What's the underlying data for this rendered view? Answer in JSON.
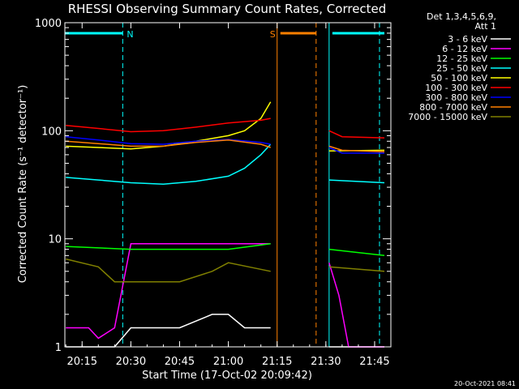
{
  "chart_data": {
    "type": "line",
    "title": "RHESSI Observing Summary Count Rates, Corrected",
    "xlabel": "Start Time (17-Oct-02 20:09:42)",
    "ylabel": "Corrected Count Rate (s⁻¹ detector⁻¹)",
    "y_scale": "log",
    "ylim": [
      1,
      1000
    ],
    "xlim": [
      "20:09:42",
      "21:50:00"
    ],
    "x_ticks": [
      "20:15",
      "20:30",
      "20:45",
      "21:00",
      "21:15",
      "21:30",
      "21:45"
    ],
    "y_ticks": [
      "1",
      "10",
      "100",
      "1000"
    ],
    "legend_title": [
      "Det 1,3,4,5,6,9,",
      "Att 1"
    ],
    "legend_position": "right",
    "footer": "20-Oct-2021 08:41",
    "flags": [
      {
        "label": "N",
        "color": "#00ffff",
        "spans": [
          [
            "20:09:42",
            "20:27:30"
          ],
          [
            "21:32:00",
            "21:48:00"
          ]
        ]
      },
      {
        "label": "S",
        "color": "#ff8000",
        "spans": [
          [
            "21:16:00",
            "21:27:00"
          ]
        ]
      }
    ],
    "vertical_lines": [
      {
        "time": "20:27:30",
        "color": "#00ffff",
        "style": "dashed"
      },
      {
        "time": "21:31:00",
        "color": "#00ffff",
        "style": "solid"
      },
      {
        "time": "21:46:30",
        "color": "#00ffff",
        "style": "dashed"
      },
      {
        "time": "21:15:00",
        "color": "#ff8000",
        "style": "solid"
      },
      {
        "time": "21:27:00",
        "color": "#ff8000",
        "style": "dashed"
      }
    ],
    "data_gap": [
      "21:14:00",
      "21:31:00"
    ],
    "series": [
      {
        "name": "3 - 6 keV",
        "color": "#ffffff",
        "points": [
          [
            "20:10",
            1
          ],
          [
            "20:25",
            1
          ],
          [
            "20:30",
            1.5
          ],
          [
            "20:45",
            1.5
          ],
          [
            "20:55",
            2
          ],
          [
            "21:00",
            2
          ],
          [
            "21:05",
            1.5
          ],
          [
            "21:13",
            1.5
          ],
          [
            "21:31",
            1
          ],
          [
            "21:48",
            1
          ]
        ]
      },
      {
        "name": "6 - 12 keV",
        "color": "#ff00ff",
        "points": [
          [
            "20:10",
            1.5
          ],
          [
            "20:17",
            1.5
          ],
          [
            "20:20",
            1.2
          ],
          [
            "20:25",
            1.5
          ],
          [
            "20:30",
            9
          ],
          [
            "21:13",
            9
          ],
          [
            "21:31",
            6
          ],
          [
            "21:34",
            3
          ],
          [
            "21:37",
            1
          ],
          [
            "21:48",
            1
          ]
        ]
      },
      {
        "name": "12 - 25 keV",
        "color": "#00ff00",
        "points": [
          [
            "20:10",
            8.5
          ],
          [
            "20:30",
            8
          ],
          [
            "20:45",
            8
          ],
          [
            "21:00",
            8
          ],
          [
            "21:13",
            9
          ],
          [
            "21:31",
            8
          ],
          [
            "21:48",
            7
          ]
        ]
      },
      {
        "name": "25 - 50 keV",
        "color": "#00ffff",
        "points": [
          [
            "20:10",
            37
          ],
          [
            "20:20",
            35
          ],
          [
            "20:30",
            33
          ],
          [
            "20:40",
            32
          ],
          [
            "20:50",
            34
          ],
          [
            "21:00",
            38
          ],
          [
            "21:05",
            45
          ],
          [
            "21:10",
            60
          ],
          [
            "21:13",
            75
          ],
          [
            "21:31",
            35
          ],
          [
            "21:48",
            33
          ]
        ]
      },
      {
        "name": "50 - 100 keV",
        "color": "#ffff00",
        "points": [
          [
            "20:10",
            72
          ],
          [
            "20:20",
            70
          ],
          [
            "20:30",
            68
          ],
          [
            "20:40",
            72
          ],
          [
            "20:50",
            80
          ],
          [
            "21:00",
            90
          ],
          [
            "21:05",
            100
          ],
          [
            "21:10",
            130
          ],
          [
            "21:13",
            185
          ],
          [
            "21:31",
            65
          ],
          [
            "21:48",
            66
          ]
        ]
      },
      {
        "name": "100 - 300 keV",
        "color": "#ff0000",
        "points": [
          [
            "20:10",
            112
          ],
          [
            "20:20",
            105
          ],
          [
            "20:30",
            98
          ],
          [
            "20:40",
            100
          ],
          [
            "20:50",
            108
          ],
          [
            "21:00",
            118
          ],
          [
            "21:10",
            125
          ],
          [
            "21:13",
            130
          ],
          [
            "21:31",
            100
          ],
          [
            "21:35",
            88
          ],
          [
            "21:48",
            86
          ]
        ]
      },
      {
        "name": "300 - 800 keV",
        "color": "#0000ff",
        "points": [
          [
            "20:10",
            88
          ],
          [
            "20:20",
            82
          ],
          [
            "20:30",
            76
          ],
          [
            "20:40",
            75
          ],
          [
            "20:50",
            80
          ],
          [
            "21:00",
            83
          ],
          [
            "21:10",
            78
          ],
          [
            "21:13",
            75
          ],
          [
            "21:31",
            70
          ],
          [
            "21:35",
            62
          ],
          [
            "21:48",
            62
          ]
        ]
      },
      {
        "name": "800 - 7000 keV",
        "color": "#ff8000",
        "points": [
          [
            "20:10",
            80
          ],
          [
            "20:20",
            76
          ],
          [
            "20:30",
            72
          ],
          [
            "20:40",
            72
          ],
          [
            "20:50",
            78
          ],
          [
            "21:00",
            82
          ],
          [
            "21:10",
            75
          ],
          [
            "21:13",
            70
          ],
          [
            "21:31",
            72
          ],
          [
            "21:35",
            66
          ],
          [
            "21:48",
            64
          ]
        ]
      },
      {
        "name": "7000 - 15000 keV",
        "color": "#808000",
        "points": [
          [
            "20:10",
            6.5
          ],
          [
            "20:20",
            5.5
          ],
          [
            "20:25",
            4
          ],
          [
            "20:45",
            4
          ],
          [
            "20:55",
            5
          ],
          [
            "21:00",
            6
          ],
          [
            "21:13",
            5
          ],
          [
            "21:31",
            5.5
          ],
          [
            "21:48",
            5
          ]
        ]
      }
    ]
  }
}
